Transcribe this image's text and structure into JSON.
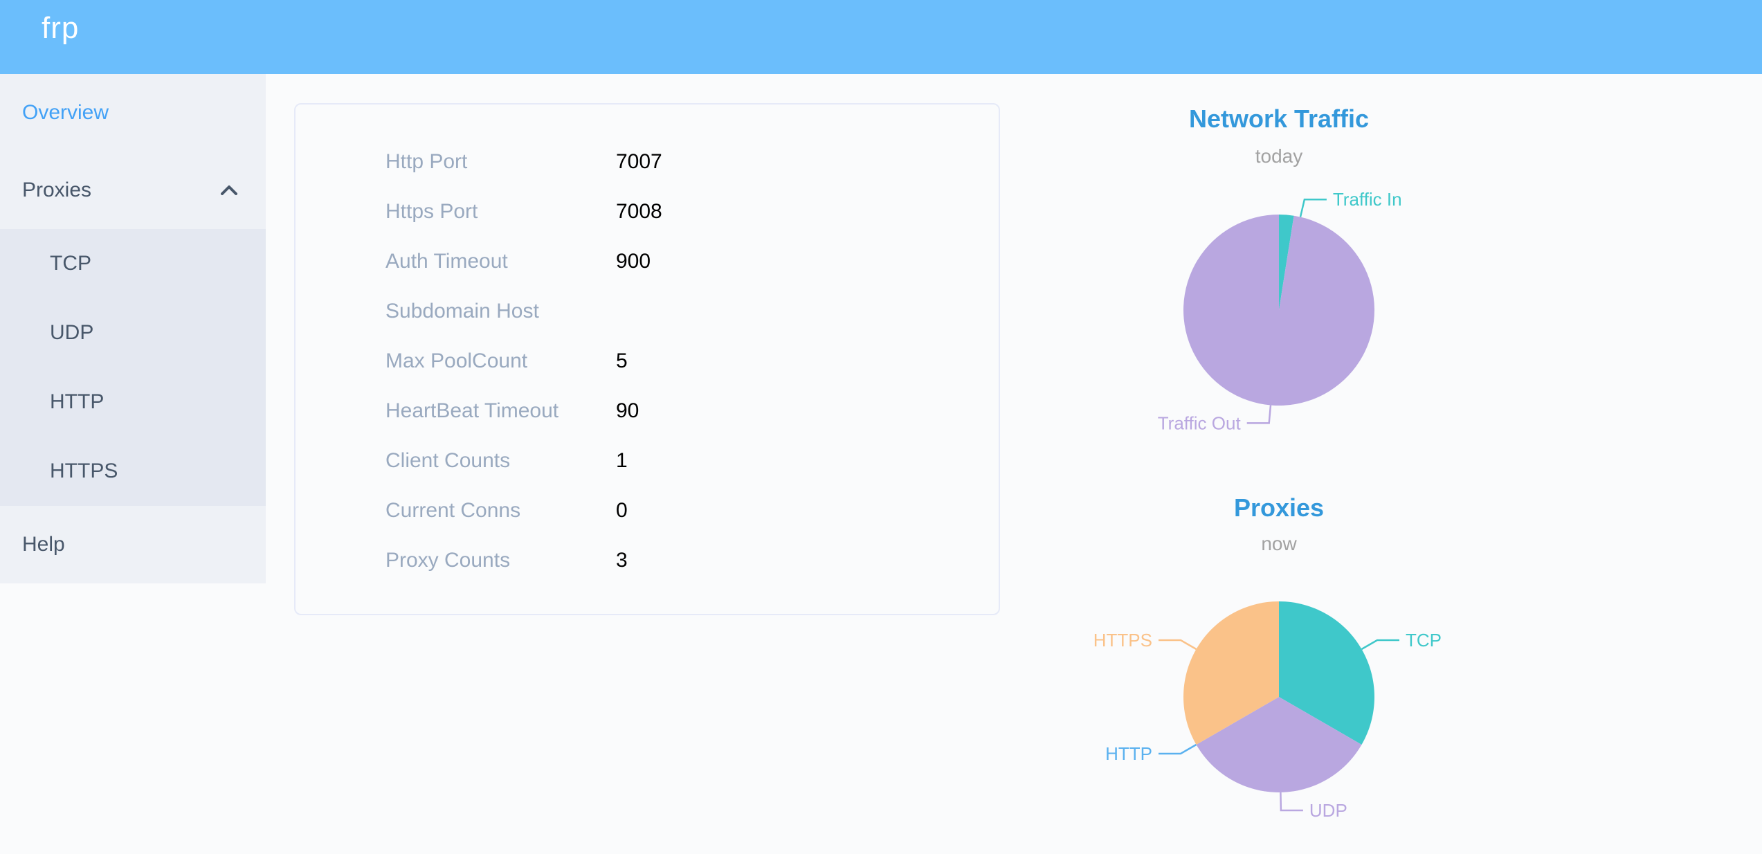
{
  "app": {
    "logo": "frp"
  },
  "sidebar": {
    "items": [
      {
        "label": "Overview",
        "active": true
      },
      {
        "label": "Proxies",
        "expanded": true,
        "children": [
          "TCP",
          "UDP",
          "HTTP",
          "HTTPS"
        ]
      },
      {
        "label": "Help",
        "active": false
      }
    ]
  },
  "server_info": {
    "rows": [
      {
        "label": "Http Port",
        "value": "7007"
      },
      {
        "label": "Https Port",
        "value": "7008"
      },
      {
        "label": "Auth Timeout",
        "value": "900"
      },
      {
        "label": "Subdomain Host",
        "value": ""
      },
      {
        "label": "Max PoolCount",
        "value": "5"
      },
      {
        "label": "HeartBeat Timeout",
        "value": "90"
      },
      {
        "label": "Client Counts",
        "value": "1"
      },
      {
        "label": "Current Conns",
        "value": "0"
      },
      {
        "label": "Proxy Counts",
        "value": "3"
      }
    ]
  },
  "chart_data": [
    {
      "type": "pie",
      "title": "Network Traffic",
      "subtitle": "today",
      "unit": "percent of total traffic (estimated from pie angles, no numeric labels shown)",
      "legend_position": "none",
      "series": [
        {
          "name": "Traffic In",
          "value": 2.5,
          "color": "#3fc8ca",
          "label_angle": 13
        },
        {
          "name": "Traffic Out",
          "value": 97.5,
          "color": "#b9a7e0",
          "label_angle": 185
        }
      ]
    },
    {
      "type": "pie",
      "title": "Proxies",
      "subtitle": "now",
      "unit": "proxy count",
      "legend_position": "none",
      "series": [
        {
          "name": "TCP",
          "value": 1,
          "color": "#3fc8ca",
          "label_angle": 60
        },
        {
          "name": "UDP",
          "value": 1,
          "color": "#b9a7e0",
          "label_angle": 179
        },
        {
          "name": "HTTP",
          "value": 0,
          "color": "#5ab1ef",
          "label_angle": 240
        },
        {
          "name": "HTTPS",
          "value": 1,
          "color": "#fac289",
          "label_angle": 300
        }
      ]
    }
  ],
  "colors": {
    "header_bg": "#6bbefc",
    "sidebar_bg": "#eef1f6",
    "submenu_bg": "#e4e8f1",
    "menu_text": "#48576a",
    "menu_active_text": "#42a1f6",
    "page_bg": "#fafbfc",
    "card_border": "#e6eaf8",
    "info_label": "#99a9bf",
    "info_value": "#000000",
    "chart_title": "#3398db",
    "chart_subtitle": "#a2a2a2"
  }
}
